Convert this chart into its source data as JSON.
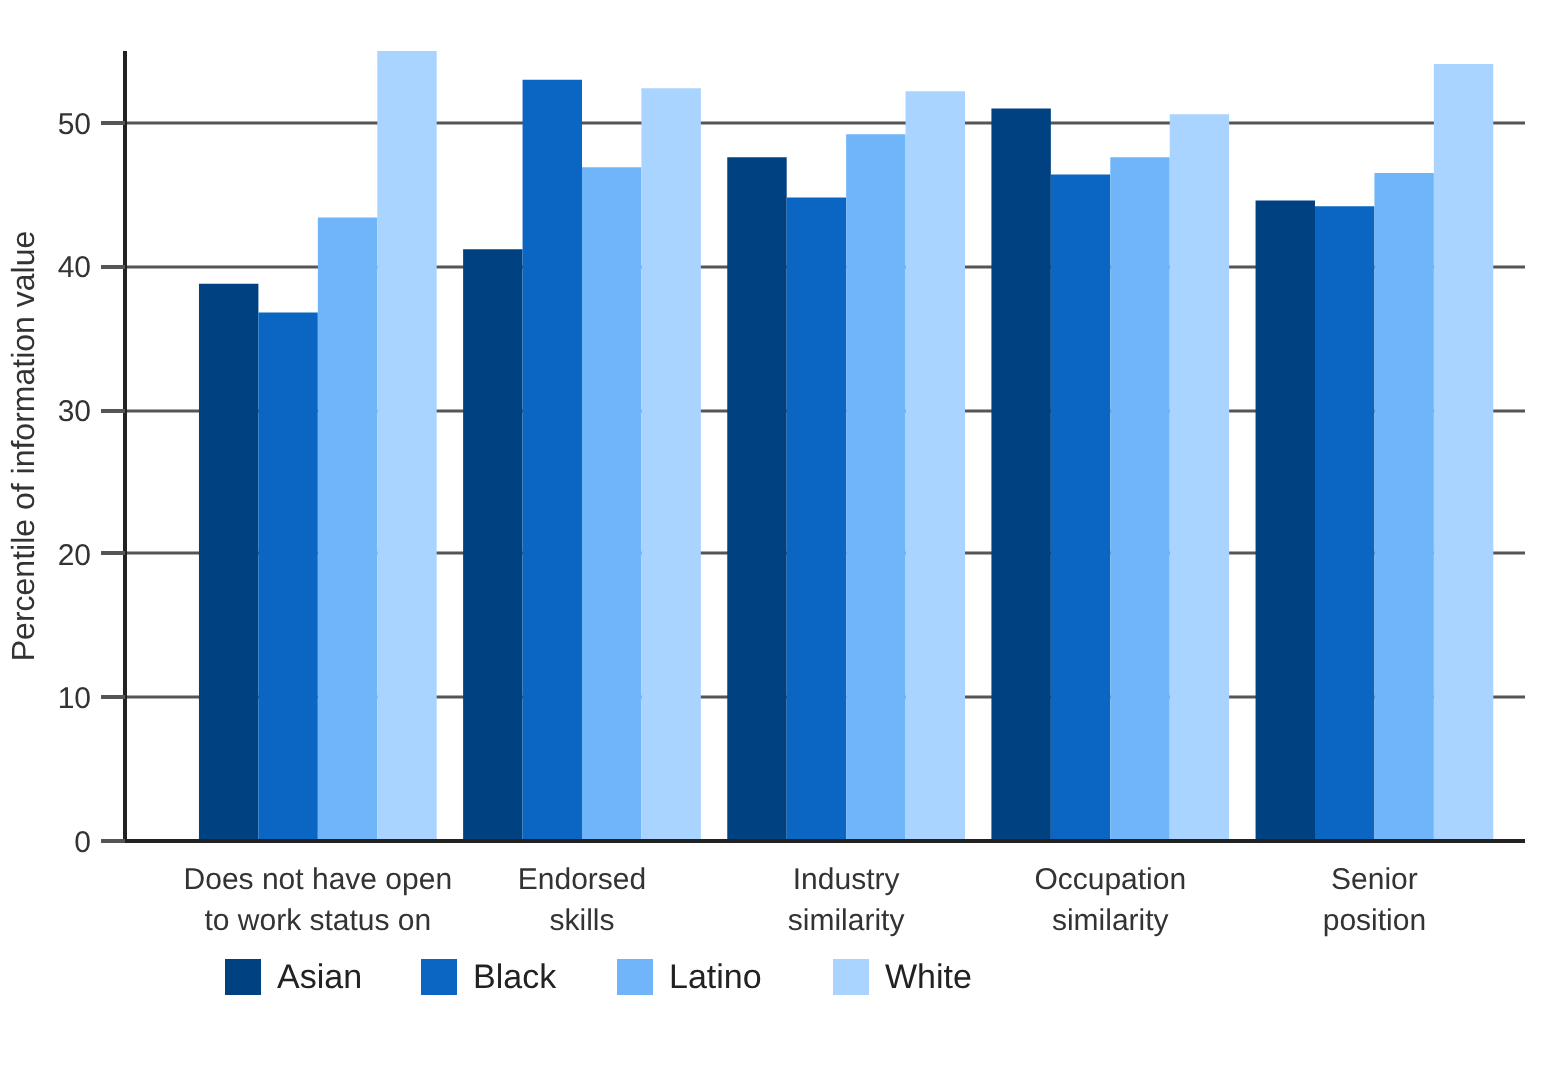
{
  "chart_data": {
    "type": "bar",
    "ylabel": "Percentile of information value",
    "categories": [
      "Does not have open to work status on",
      "Endorsed skills",
      "Industry similarity",
      "Occupation similarity",
      "Senior position"
    ],
    "series": [
      {
        "name": "Asian",
        "color": "#004182",
        "values": [
          38.8,
          41.2,
          47.6,
          51.0,
          44.6
        ]
      },
      {
        "name": "Black",
        "color": "#0a66c2",
        "values": [
          36.8,
          53.0,
          44.8,
          46.4,
          44.2
        ]
      },
      {
        "name": "Latino",
        "color": "#70b5f9",
        "values": [
          43.4,
          46.9,
          49.2,
          47.6,
          46.5
        ]
      },
      {
        "name": "White",
        "color": "#a8d4ff",
        "values": [
          55,
          52.4,
          52.2,
          50.6,
          54.1
        ]
      }
    ],
    "ylim": [
      0,
      55
    ],
    "yticks": [
      0,
      10,
      20,
      30,
      40,
      50
    ],
    "grid": "y",
    "legend": "bottom"
  }
}
